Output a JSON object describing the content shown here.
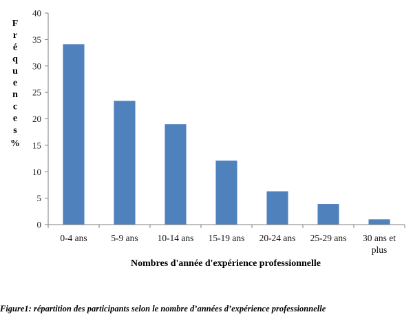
{
  "chart_data": {
    "type": "bar",
    "categories": [
      "0-4 ans",
      "5-9 ans",
      "10-14 ans",
      "15-19 ans",
      "20-24 ans",
      "25-29 ans",
      "30 ans et plus"
    ],
    "values": [
      34.1,
      23.4,
      19.0,
      12.1,
      6.3,
      3.9,
      1.0
    ],
    "xlabel": "Nombres d'année d'expérience professionnelle",
    "ylabel": "Fréquences %",
    "ylim": [
      0,
      40
    ],
    "yticks": [
      0,
      5,
      10,
      15,
      20,
      25,
      30,
      35,
      40
    ],
    "bar_color": "#4F81BD",
    "grid": false
  },
  "caption": "Figure1: répartition des participants selon le nombre d’années d’expérience professionnelle"
}
